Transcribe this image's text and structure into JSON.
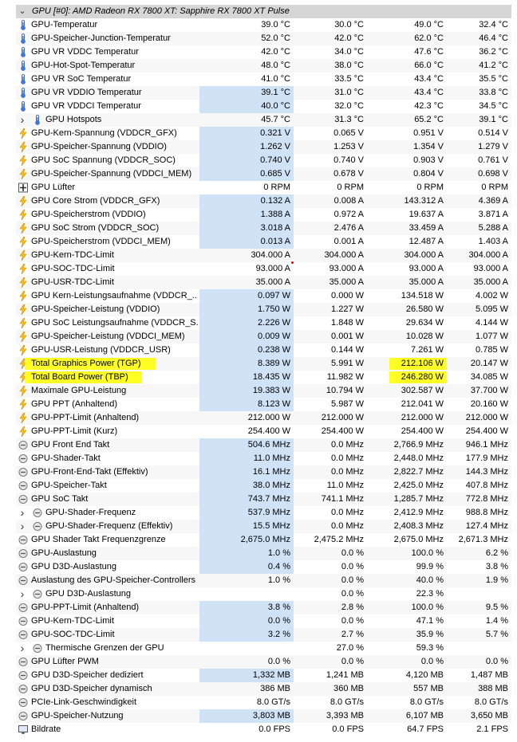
{
  "group_title": "GPU [#0]: AMD Radeon RX 7800 XT: Sapphire RX 7800 XT Pulse",
  "highlight_color": "#ffff00",
  "bar_color": "#cfe2f6",
  "rows": [
    {
      "icon": "thermometer-icon",
      "label": "GPU-Temperatur",
      "c1": "39.0 °C",
      "c2": "30.0 °C",
      "c3": "49.0 °C",
      "c4": "32.4 °C"
    },
    {
      "icon": "thermometer-icon",
      "label": "GPU-Speicher-Junction-Temperatur",
      "c1": "52.0 °C",
      "c2": "42.0 °C",
      "c3": "62.0 °C",
      "c4": "46.4 °C"
    },
    {
      "icon": "thermometer-icon",
      "label": "GPU VR VDDC Temperatur",
      "c1": "42.0 °C",
      "c2": "34.0 °C",
      "c3": "47.6 °C",
      "c4": "36.2 °C"
    },
    {
      "icon": "thermometer-icon",
      "label": "GPU-Hot-Spot-Temperatur",
      "c1": "48.0 °C",
      "c2": "38.0 °C",
      "c3": "66.0 °C",
      "c4": "41.2 °C"
    },
    {
      "icon": "thermometer-icon",
      "label": "GPU VR SoC Temperatur",
      "c1": "41.0 °C",
      "c2": "33.5 °C",
      "c3": "43.4 °C",
      "c4": "35.5 °C"
    },
    {
      "icon": "thermometer-icon",
      "label": "GPU VR VDDIO Temperatur",
      "c1": "39.1 °C",
      "c2": "31.0 °C",
      "c3": "43.4 °C",
      "c4": "33.8 °C",
      "bar": true
    },
    {
      "icon": "thermometer-icon",
      "label": "GPU VR VDDCI Temperatur",
      "c1": "40.0 °C",
      "c2": "32.0 °C",
      "c3": "42.3 °C",
      "c4": "34.5 °C",
      "bar": true
    },
    {
      "icon": "thermometer-icon",
      "label": "GPU Hotspots",
      "c1": "45.7 °C",
      "c2": "31.3 °C",
      "c3": "65.2 °C",
      "c4": "39.1 °C",
      "expand": true,
      "indent": true
    },
    {
      "icon": "bolt-icon",
      "label": "GPU-Kern-Spannung (VDDCR_GFX)",
      "c1": "0.321 V",
      "c2": "0.065 V",
      "c3": "0.951 V",
      "c4": "0.514 V",
      "bar": true
    },
    {
      "icon": "bolt-icon",
      "label": "GPU-Speicher-Spannung (VDDIO)",
      "c1": "1.262 V",
      "c2": "1.253 V",
      "c3": "1.354 V",
      "c4": "1.279 V",
      "bar": true
    },
    {
      "icon": "bolt-icon",
      "label": "GPU SoC Spannung (VDDCR_SOC)",
      "c1": "0.740 V",
      "c2": "0.740 V",
      "c3": "0.903 V",
      "c4": "0.761 V",
      "bar": true
    },
    {
      "icon": "bolt-icon",
      "label": "GPU-Speicher-Spannung (VDDCI_MEM)",
      "c1": "0.685 V",
      "c2": "0.678 V",
      "c3": "0.804 V",
      "c4": "0.698 V",
      "bar": true
    },
    {
      "icon": "fan-icon",
      "label": "GPU Lüfter",
      "c1": "0 RPM",
      "c2": "0 RPM",
      "c3": "0 RPM",
      "c4": "0 RPM"
    },
    {
      "icon": "bolt-icon",
      "label": "GPU Core Strom (VDDCR_GFX)",
      "c1": "0.132 A",
      "c2": "0.008 A",
      "c3": "143.312 A",
      "c4": "4.369 A",
      "bar": true
    },
    {
      "icon": "bolt-icon",
      "label": "GPU-Speicherstrom (VDDIO)",
      "c1": "1.388 A",
      "c2": "0.972 A",
      "c3": "19.637 A",
      "c4": "3.871 A",
      "bar": true
    },
    {
      "icon": "bolt-icon",
      "label": "GPU SoC Strom (VDDCR_SOC)",
      "c1": "3.018 A",
      "c2": "2.476 A",
      "c3": "33.459 A",
      "c4": "5.288 A",
      "bar": true
    },
    {
      "icon": "bolt-icon",
      "label": "GPU-Speicherstrom (VDDCI_MEM)",
      "c1": "0.013 A",
      "c2": "0.001 A",
      "c3": "12.487 A",
      "c4": "1.403 A",
      "bar": true
    },
    {
      "icon": "bolt-icon",
      "label": "GPU-Kern-TDC-Limit",
      "c1": "304.000 A",
      "c2": "304.000 A",
      "c3": "304.000 A",
      "c4": "304.000 A"
    },
    {
      "icon": "bolt-icon",
      "label": "GPU-SOC-TDC-Limit",
      "c1": "93.000 A",
      "c2": "93.000 A",
      "c3": "93.000 A",
      "c4": "93.000 A"
    },
    {
      "icon": "bolt-icon",
      "label": "GPU-USR-TDC-Limit",
      "c1": "35.000 A",
      "c2": "35.000 A",
      "c3": "35.000 A",
      "c4": "35.000 A"
    },
    {
      "icon": "bolt-icon",
      "label": "GPU Kern-Leistungsaufnahme (VDDCR_...",
      "c1": "0.097 W",
      "c2": "0.000 W",
      "c3": "134.518 W",
      "c4": "4.002 W",
      "bar": true
    },
    {
      "icon": "bolt-icon",
      "label": "GPU-Speicher-Leistung (VDDIO)",
      "c1": "1.750 W",
      "c2": "1.227 W",
      "c3": "26.580 W",
      "c4": "5.095 W",
      "bar": true
    },
    {
      "icon": "bolt-icon",
      "label": "GPU SoC Leistungsaufnahme (VDDCR_S...",
      "c1": "2.226 W",
      "c2": "1.848 W",
      "c3": "29.634 W",
      "c4": "4.144 W",
      "bar": true
    },
    {
      "icon": "bolt-icon",
      "label": "GPU-Speicher-Leistung (VDDCI_MEM)",
      "c1": "0.009 W",
      "c2": "0.001 W",
      "c3": "10.028 W",
      "c4": "1.077 W",
      "bar": true
    },
    {
      "icon": "bolt-icon",
      "label": "GPU-USR-Leistung (VDDCR_USR)",
      "c1": "0.238 W",
      "c2": "0.144 W",
      "c3": "7.261 W",
      "c4": "0.785 W",
      "bar": true
    },
    {
      "icon": "bolt-icon",
      "label": "Total Graphics Power (TGP)",
      "c1": "8.389 W",
      "c2": "5.991 W",
      "c3": "212.106 W",
      "c4": "20.147 W",
      "bar": true,
      "hl_label": true,
      "hl_c3": true
    },
    {
      "icon": "bolt-icon",
      "label": "Total Board Power (TBP)",
      "c1": "18.435 W",
      "c2": "11.982 W",
      "c3": "246.280 W",
      "c4": "34.085 W",
      "bar": true,
      "hl_label": true,
      "hl_c3": true
    },
    {
      "icon": "bolt-icon",
      "label": "Maximale GPU-Leistung",
      "c1": "19.383 W",
      "c2": "10.794 W",
      "c3": "302.587 W",
      "c4": "37.700 W",
      "bar": true
    },
    {
      "icon": "bolt-icon",
      "label": "GPU PPT (Anhaltend)",
      "c1": "8.123 W",
      "c2": "5.987 W",
      "c3": "212.041 W",
      "c4": "20.160 W",
      "bar": true
    },
    {
      "icon": "bolt-icon",
      "label": "GPU-PPT-Limit (Anhaltend)",
      "c1": "212.000 W",
      "c2": "212.000 W",
      "c3": "212.000 W",
      "c4": "212.000 W"
    },
    {
      "icon": "bolt-icon",
      "label": "GPU-PPT-Limit (Kurz)",
      "c1": "254.400 W",
      "c2": "254.400 W",
      "c3": "254.400 W",
      "c4": "254.400 W"
    },
    {
      "icon": "gauge-icon",
      "label": "GPU Front End Takt",
      "c1": "504.6 MHz",
      "c2": "0.0 MHz",
      "c3": "2,766.9 MHz",
      "c4": "946.1 MHz",
      "bar": true
    },
    {
      "icon": "gauge-icon",
      "label": "GPU-Shader-Takt",
      "c1": "11.0 MHz",
      "c2": "0.0 MHz",
      "c3": "2,448.0 MHz",
      "c4": "177.9 MHz",
      "bar": true
    },
    {
      "icon": "gauge-icon",
      "label": "GPU-Front-End-Takt (Effektiv)",
      "c1": "16.1 MHz",
      "c2": "0.0 MHz",
      "c3": "2,822.7 MHz",
      "c4": "144.3 MHz",
      "bar": true
    },
    {
      "icon": "gauge-icon",
      "label": "GPU-Speicher-Takt",
      "c1": "38.0 MHz",
      "c2": "11.0 MHz",
      "c3": "2,425.0 MHz",
      "c4": "407.8 MHz",
      "bar": true
    },
    {
      "icon": "gauge-icon",
      "label": "GPU SoC Takt",
      "c1": "743.7 MHz",
      "c2": "741.1 MHz",
      "c3": "1,285.7 MHz",
      "c4": "772.8 MHz",
      "bar": true
    },
    {
      "icon": "gauge-icon",
      "label": "GPU-Shader-Frequenz",
      "c1": "537.9 MHz",
      "c2": "0.0 MHz",
      "c3": "2,412.9 MHz",
      "c4": "988.8 MHz",
      "bar": true,
      "expand": true,
      "indent": true
    },
    {
      "icon": "gauge-icon",
      "label": "GPU-Shader-Frequenz (Effektiv)",
      "c1": "15.5 MHz",
      "c2": "0.0 MHz",
      "c3": "2,408.3 MHz",
      "c4": "127.4 MHz",
      "bar": true,
      "expand": true,
      "indent": true
    },
    {
      "icon": "gauge-icon",
      "label": "GPU Shader Takt Frequenzgrenze",
      "c1": "2,675.0 MHz",
      "c2": "2,475.2 MHz",
      "c3": "2,675.0 MHz",
      "c4": "2,671.3 MHz",
      "bar": true
    },
    {
      "icon": "gauge-icon",
      "label": "GPU-Auslastung",
      "c1": "1.0 %",
      "c2": "0.0 %",
      "c3": "100.0 %",
      "c4": "6.2 %",
      "bar": true
    },
    {
      "icon": "gauge-icon",
      "label": "GPU D3D-Auslastung",
      "c1": "0.4 %",
      "c2": "0.0 %",
      "c3": "99.9 %",
      "c4": "3.8 %",
      "bar": true
    },
    {
      "icon": "gauge-icon",
      "label": "Auslastung des GPU-Speicher-Controllers",
      "c1": "1.0 %",
      "c2": "0.0 %",
      "c3": "40.0 %",
      "c4": "1.9 %"
    },
    {
      "icon": "gauge-icon",
      "label": "GPU D3D-Auslastung",
      "c1": "",
      "c2": "0.0 %",
      "c3": "22.3 %",
      "c4": "",
      "expand": true,
      "indent": true
    },
    {
      "icon": "gauge-icon",
      "label": "GPU-PPT-Limit (Anhaltend)",
      "c1": "3.8 %",
      "c2": "2.8 %",
      "c3": "100.0 %",
      "c4": "9.5 %",
      "bar": true
    },
    {
      "icon": "gauge-icon",
      "label": "GPU-Kern-TDC-Limit",
      "c1": "0.0 %",
      "c2": "0.0 %",
      "c3": "47.1 %",
      "c4": "1.4 %",
      "bar": true
    },
    {
      "icon": "gauge-icon",
      "label": "GPU-SOC-TDC-Limit",
      "c1": "3.2 %",
      "c2": "2.7 %",
      "c3": "35.9 %",
      "c4": "5.7 %",
      "bar": true
    },
    {
      "icon": "gauge-icon",
      "label": "Thermische Grenzen der GPU",
      "c1": "",
      "c2": "27.0 %",
      "c3": "59.3 %",
      "c4": "",
      "expand": true,
      "indent": true
    },
    {
      "icon": "gauge-icon",
      "label": "GPU Lüfter PWM",
      "c1": "0.0 %",
      "c2": "0.0 %",
      "c3": "0.0 %",
      "c4": "0.0 %"
    },
    {
      "icon": "gauge-icon",
      "label": "GPU D3D-Speicher dediziert",
      "c1": "1,332 MB",
      "c2": "1,241 MB",
      "c3": "4,120 MB",
      "c4": "1,487 MB",
      "bar": true
    },
    {
      "icon": "gauge-icon",
      "label": "GPU D3D-Speicher dynamisch",
      "c1": "386 MB",
      "c2": "360 MB",
      "c3": "557 MB",
      "c4": "388 MB"
    },
    {
      "icon": "gauge-icon",
      "label": "PCIe-Link-Geschwindigkeit",
      "c1": "8.0 GT/s",
      "c2": "8.0 GT/s",
      "c3": "8.0 GT/s",
      "c4": "8.0 GT/s"
    },
    {
      "icon": "gauge-icon",
      "label": "GPU-Speicher-Nutzung",
      "c1": "3,803 MB",
      "c2": "3,393 MB",
      "c3": "6,107 MB",
      "c4": "3,650 MB",
      "bar": true
    },
    {
      "icon": "monitor-icon",
      "label": "Bildrate",
      "c1": "0.0 FPS",
      "c2": "0.0 FPS",
      "c3": "64.7 FPS",
      "c4": "2.1 FPS"
    }
  ]
}
